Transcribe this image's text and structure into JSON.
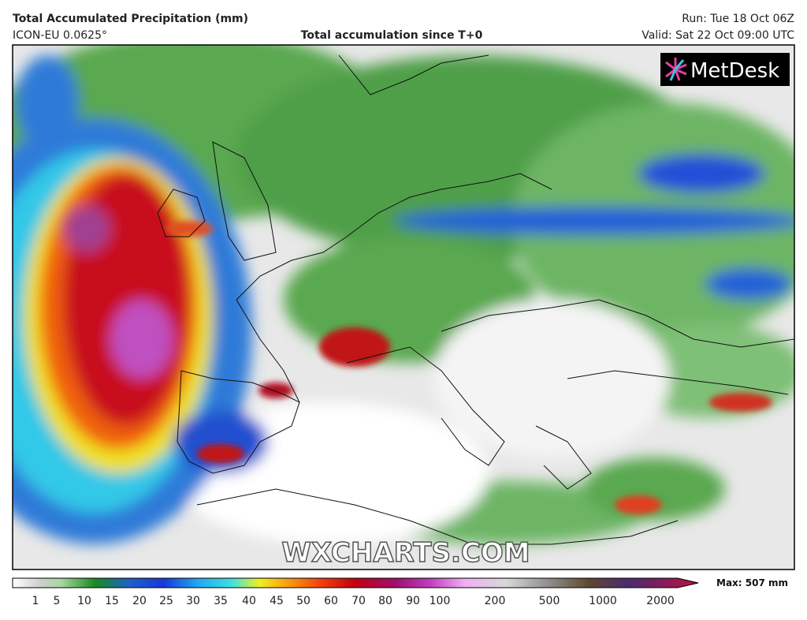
{
  "header": {
    "title": "Total Accumulated Precipitation (mm)",
    "model": "ICON-EU 0.0625°",
    "subtitle": "Total accumulation since T+0",
    "run": "Run: Tue 18 Oct 06Z",
    "valid": "Valid: Sat 22 Oct 09:00 UTC"
  },
  "map": {
    "logo": "MetDesk",
    "watermark": "WXCHARTS.COM"
  },
  "legend": {
    "max": "Max: 507 mm",
    "ticks": [
      1,
      5,
      10,
      15,
      20,
      25,
      30,
      35,
      40,
      45,
      50,
      60,
      70,
      80,
      90,
      100,
      200,
      500,
      1000,
      2000
    ]
  }
}
